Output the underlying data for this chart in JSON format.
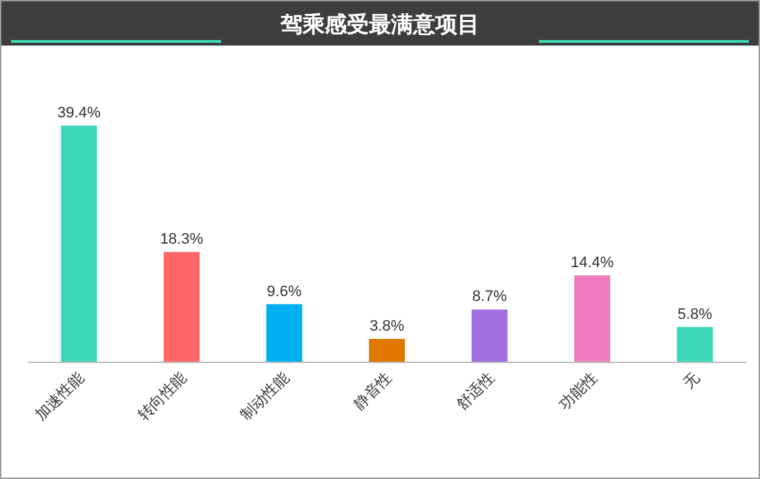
{
  "chart_data": {
    "type": "bar",
    "title": "驾乘感受最满意项目",
    "categories": [
      "加速性能",
      "转向性能",
      "制动性能",
      "静音性",
      "舒适性",
      "功能性",
      "无"
    ],
    "values": [
      39.4,
      18.3,
      9.6,
      3.8,
      8.7,
      14.4,
      5.8
    ],
    "colors": [
      "#3dd8b8",
      "#ff6666",
      "#00b0f0",
      "#e07800",
      "#a070e0",
      "#f07cc0",
      "#3dd8b8"
    ],
    "value_labels": [
      "39.4%",
      "18.3%",
      "9.6%",
      "3.8%",
      "8.7%",
      "14.4%",
      "5.8%"
    ]
  }
}
